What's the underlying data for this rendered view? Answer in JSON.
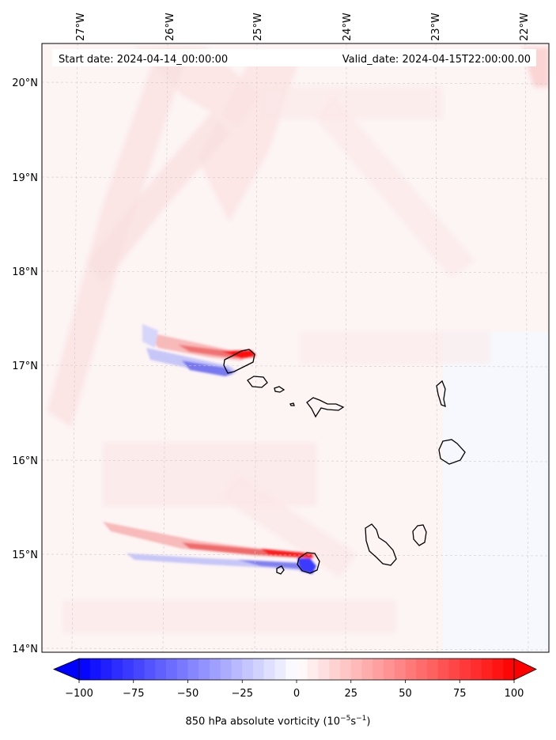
{
  "annotations": {
    "start_date": "Start date: 2024-04-14_00:00:00",
    "valid_date": "Valid_date: 2024-04-15T22:00:00.00"
  },
  "map": {
    "lon_labels": [
      "27°W",
      "26°W",
      "25°W",
      "24°W",
      "23°W",
      "22°W"
    ],
    "lat_labels": [
      "20°N",
      "19°N",
      "18°N",
      "17°N",
      "16°N",
      "15°N",
      "14°N"
    ],
    "region": "Cabo Verde islands",
    "extent": {
      "lon": [
        -27.35,
        -21.75
      ],
      "lat": [
        13.95,
        20.42
      ]
    }
  },
  "colorbar": {
    "label_prefix": "850 hPa absolute vorticity (10",
    "label_exp1": "−5",
    "label_mid": "s",
    "label_exp2": "−1",
    "label_suffix": ")",
    "tick_labels": [
      "−100",
      "−75",
      "−50",
      "−25",
      "0",
      "25",
      "50",
      "75",
      "100"
    ],
    "range": [
      -100,
      100
    ],
    "extend": "both",
    "colors": {
      "min": "#0000ff",
      "mid": "#ffffff",
      "max": "#ff0000"
    }
  },
  "colors": {
    "coastline": "#000000",
    "grid": "#cccccc",
    "background_tint": "#fdf4f4"
  }
}
